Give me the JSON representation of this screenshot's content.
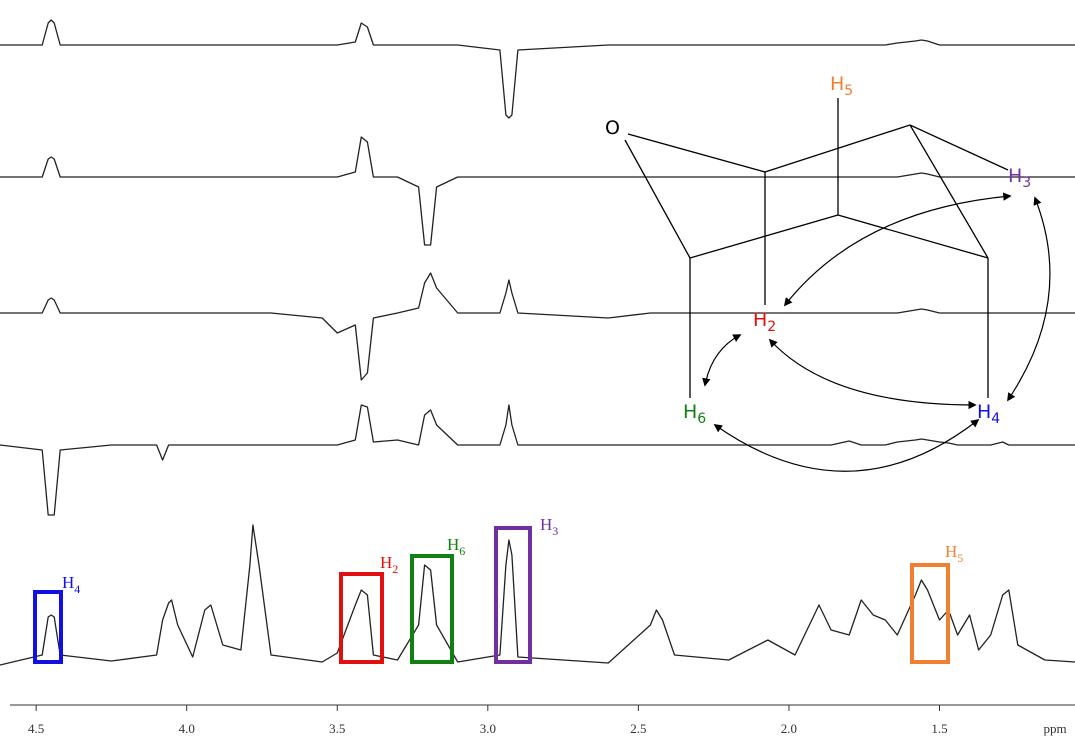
{
  "chart_data": {
    "type": "line",
    "x_label": "ppm",
    "xlim": [
      4.62,
      1.05
    ],
    "xticks": [
      4.5,
      {
        "value": 4,
        "label": "4.0"
      },
      3.5,
      {
        "value": 3,
        "label": "3.0"
      },
      2.5,
      {
        "value": 2,
        "label": "2.0"
      },
      1.5
    ],
    "x": [
      4.62,
      4.48,
      4.46,
      4.45,
      4.44,
      4.42,
      4.25,
      4.1,
      4.08,
      4.06,
      4.05,
      4.03,
      3.98,
      3.94,
      3.92,
      3.88,
      3.82,
      3.79,
      3.78,
      3.76,
      3.72,
      3.55,
      3.5,
      3.44,
      3.42,
      3.4,
      3.38,
      3.3,
      3.23,
      3.21,
      3.19,
      3.17,
      3.1,
      2.96,
      2.94,
      2.93,
      2.92,
      2.9,
      2.6,
      2.46,
      2.44,
      2.42,
      2.38,
      2.2,
      2.07,
      1.98,
      1.9,
      1.86,
      1.8,
      1.76,
      1.72,
      1.68,
      1.64,
      1.58,
      1.56,
      1.54,
      1.5,
      1.47,
      1.44,
      1.4,
      1.37,
      1.33,
      1.29,
      1.27,
      1.24,
      1.15,
      1.05
    ],
    "series": [
      {
        "color": "#222222",
        "values": [
          0,
          0,
          22,
          25,
          22,
          0,
          0,
          0,
          0,
          0,
          0,
          0,
          0,
          0,
          0,
          0,
          0,
          0,
          0,
          0,
          0,
          0,
          0,
          3,
          22,
          18,
          0,
          0,
          0,
          0,
          0,
          0,
          0,
          -5,
          -70,
          -73,
          -70,
          -5,
          0,
          0,
          0,
          0,
          0,
          0,
          0,
          0,
          0,
          0,
          0,
          0,
          0,
          0,
          2,
          4,
          5,
          4,
          0,
          0,
          0,
          0,
          0,
          0,
          0,
          0,
          0,
          0,
          0
        ]
      },
      {
        "color": "#222222",
        "values": [
          0,
          0,
          18,
          20,
          18,
          0,
          0,
          0,
          0,
          0,
          0,
          0,
          0,
          0,
          0,
          0,
          0,
          0,
          0,
          0,
          0,
          0,
          0,
          5,
          40,
          35,
          0,
          0,
          -10,
          -68,
          -68,
          -10,
          0,
          0,
          0,
          0,
          0,
          0,
          0,
          0,
          0,
          0,
          0,
          0,
          0,
          0,
          0,
          0,
          0,
          0,
          0,
          0,
          0,
          3,
          4,
          3,
          0,
          0,
          0,
          0,
          0,
          0,
          0,
          0,
          0,
          0,
          0
        ]
      },
      {
        "color": "#222222",
        "values": [
          0,
          0,
          13,
          15,
          13,
          0,
          0,
          0,
          0,
          0,
          0,
          0,
          0,
          0,
          0,
          0,
          0,
          0,
          0,
          0,
          0,
          -5,
          -20,
          -12,
          -67,
          -60,
          -5,
          0,
          5,
          30,
          40,
          25,
          0,
          0,
          20,
          33,
          20,
          0,
          -5,
          0,
          0,
          0,
          0,
          0,
          0,
          0,
          0,
          0,
          0,
          0,
          0,
          0,
          0,
          3,
          4,
          3,
          0,
          0,
          0,
          0,
          0,
          0,
          0,
          0,
          0,
          0,
          0
        ]
      },
      {
        "color": "#222222",
        "values": [
          0,
          -5,
          -70,
          -70,
          -70,
          -5,
          0,
          0,
          -15,
          0,
          0,
          0,
          0,
          0,
          0,
          0,
          0,
          0,
          0,
          0,
          0,
          0,
          0,
          5,
          40,
          38,
          3,
          5,
          0,
          30,
          35,
          20,
          0,
          0,
          20,
          40,
          20,
          0,
          0,
          0,
          0,
          0,
          0,
          0,
          0,
          0,
          0,
          0,
          4,
          0,
          0,
          0,
          3,
          5,
          6,
          5,
          3,
          2,
          0,
          0,
          0,
          0,
          3,
          0,
          0,
          0,
          0
        ]
      },
      {
        "color": "#222222",
        "values": [
          0,
          10,
          48,
          50,
          48,
          10,
          4,
          10,
          45,
          62,
          65,
          40,
          8,
          55,
          60,
          20,
          15,
          100,
          140,
          100,
          10,
          3,
          12,
          60,
          75,
          70,
          10,
          5,
          40,
          100,
          95,
          40,
          3,
          10,
          100,
          125,
          110,
          8,
          2,
          40,
          55,
          45,
          10,
          5,
          25,
          10,
          60,
          35,
          30,
          65,
          50,
          45,
          30,
          70,
          85,
          75,
          45,
          55,
          30,
          50,
          15,
          30,
          70,
          75,
          20,
          5,
          3
        ]
      }
    ],
    "annotations": [
      {
        "text": "H",
        "subscript": "4"
      },
      {
        "text": "H",
        "subscript": "2"
      },
      {
        "text": "H",
        "subscript": "6"
      },
      {
        "text": "H",
        "subscript": "3"
      },
      {
        "text": "H",
        "subscript": "5"
      }
    ]
  },
  "structure": {
    "atoms": [
      {
        "text": "O"
      },
      {
        "text": "H",
        "subscript": "5"
      },
      {
        "text": "H",
        "subscript": "3"
      },
      {
        "text": "H",
        "subscript": "2"
      },
      {
        "text": "H",
        "subscript": "6"
      },
      {
        "text": "H",
        "subscript": "4"
      }
    ]
  }
}
